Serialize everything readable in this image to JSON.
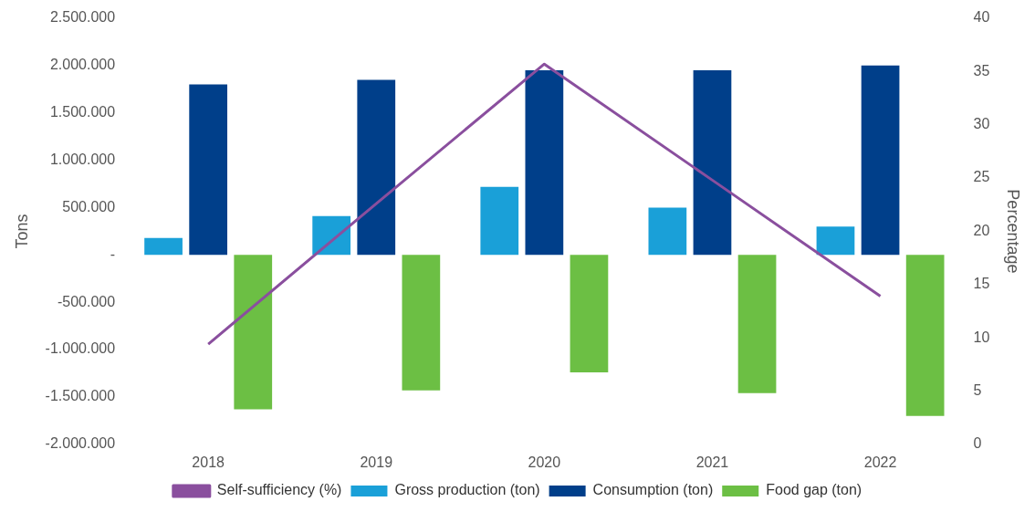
{
  "chart_data": {
    "type": "bar",
    "ylabel": "Tons",
    "y2label": "Percentage",
    "categories": [
      "2018",
      "2019",
      "2020",
      "2021",
      "2022"
    ],
    "series": [
      {
        "name": "Gross production (ton)",
        "color": "#1aa0d8",
        "values": [
          180000,
          410000,
          720000,
          500000,
          300000
        ]
      },
      {
        "name": "Consumption (ton)",
        "color": "#003f8a",
        "values": [
          1800000,
          1850000,
          1950000,
          1950000,
          2000000
        ]
      },
      {
        "name": "Food gap (ton)",
        "color": "#6cbf44",
        "values": [
          -1630000,
          -1430000,
          -1240000,
          -1460000,
          -1700000
        ]
      },
      {
        "name": "Self-sufficiency (%)",
        "color": "#8a4f9e",
        "type": "line",
        "axis": "y2",
        "marker": "none",
        "values": [
          9.4,
          22.6,
          35.7,
          24.8,
          13.9
        ]
      }
    ],
    "ylim": [
      -2000000,
      2500000
    ],
    "yticks": [
      {
        "value": -2000000,
        "label": "-2.000.000"
      },
      {
        "value": -1500000,
        "label": "-1.500.000"
      },
      {
        "value": -1000000,
        "label": "-1.000.000"
      },
      {
        "value": -500000,
        "label": "-500.000"
      },
      {
        "value": 0,
        "label": "-"
      },
      {
        "value": 500000,
        "label": "500.000"
      },
      {
        "value": 1000000,
        "label": "1.000.000"
      },
      {
        "value": 1500000,
        "label": "1.500.000"
      },
      {
        "value": 2000000,
        "label": "2.000.000"
      },
      {
        "value": 2500000,
        "label": "2.500.000"
      }
    ],
    "y2lim": [
      0,
      40
    ],
    "y2ticks": [
      0,
      5,
      10,
      15,
      20,
      25,
      30,
      35,
      40
    ],
    "grid": false,
    "legend": "bottom"
  }
}
